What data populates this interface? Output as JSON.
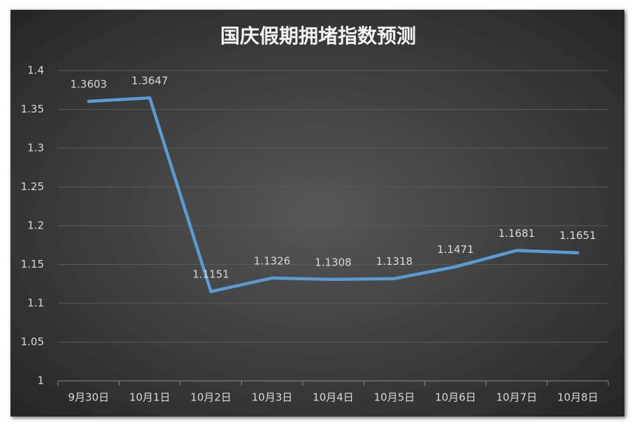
{
  "chart_data": {
    "type": "line",
    "title": "国庆假期拥堵指数预测",
    "categories": [
      "9月30日",
      "10月1日",
      "10月2日",
      "10月3日",
      "10月4日",
      "10月5日",
      "10月6日",
      "10月7日",
      "10月8日"
    ],
    "values": [
      1.3603,
      1.3647,
      1.1151,
      1.1326,
      1.1308,
      1.1318,
      1.1471,
      1.1681,
      1.1651
    ],
    "color": "#5b9bd5",
    "ylim": [
      1,
      1.4
    ],
    "yticks": [
      1,
      1.05,
      1.1,
      1.15,
      1.2,
      1.25,
      1.3,
      1.35,
      1.4
    ],
    "grid": true
  }
}
